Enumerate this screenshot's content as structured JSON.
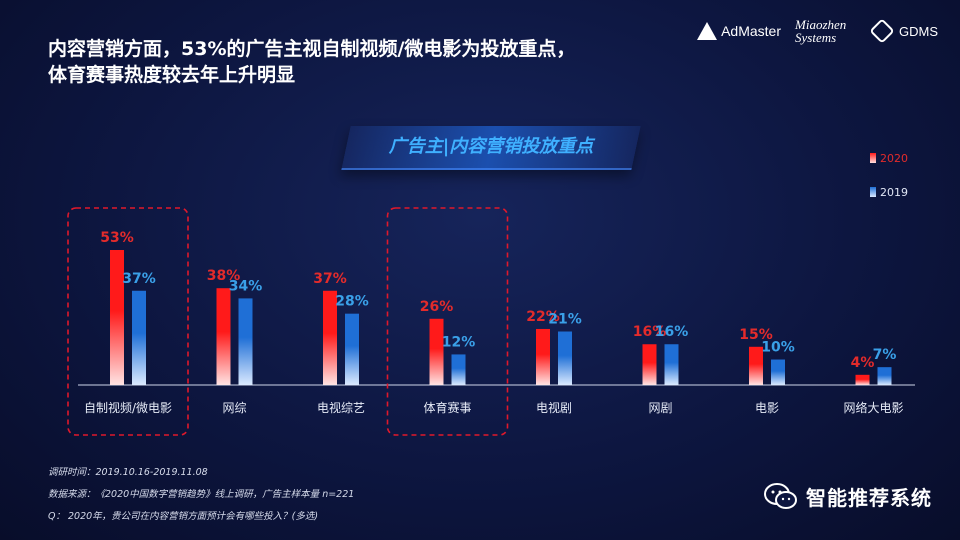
{
  "headline_lines": [
    "内容营销方面，53%的广告主视自制视频/微电影为投放重点，",
    "体育赛事热度较去年上升明显"
  ],
  "logos": {
    "admaster": "AdMaster",
    "miaozhen_line1": "Miaozhen",
    "miaozhen_line2": "Systems",
    "gdms": "GDMS"
  },
  "banner_title": "广告主|内容营销投放重点",
  "footnotes": {
    "survey_time": "调研时间：2019.10.16-2019.11.08",
    "source": "数据来源：《2020中国数字营销趋势》线上调研，广告主样本量 n=221",
    "question": "Q：  2020年，贵公司在内容营销方面预计会有哪些投入？(多选)"
  },
  "watermark": "智能推荐系统",
  "colors": {
    "series_2020": "#ff1a1a",
    "series_2019": "#1f6fd6",
    "label_2020": "#e32b2b",
    "label_2019": "#3aa0e8",
    "highlight": "#e0182b"
  },
  "chart_data": {
    "type": "bar",
    "categories": [
      "自制视频/微电影",
      "网综",
      "电视综艺",
      "体育赛事",
      "电视剧",
      "网剧",
      "电影",
      "网络大电影"
    ],
    "series": [
      {
        "name": "2020",
        "values": [
          53,
          38,
          37,
          26,
          22,
          16,
          15,
          4
        ],
        "labels": [
          "53%",
          "38%",
          "37%",
          "26%",
          "22%",
          "16%",
          "15%",
          "4%"
        ]
      },
      {
        "name": "2019",
        "values": [
          37,
          34,
          28,
          12,
          21,
          16,
          10,
          7
        ],
        "labels": [
          "37%",
          "34%",
          "28%",
          "12%",
          "21%",
          "16%",
          "10%",
          "7%"
        ]
      }
    ],
    "title": "广告主|内容营销投放重点",
    "highlighted_categories": [
      "自制视频/微电影",
      "体育赛事"
    ],
    "ylim": [
      0,
      60
    ],
    "legend_position": "top-right",
    "grid": false
  }
}
